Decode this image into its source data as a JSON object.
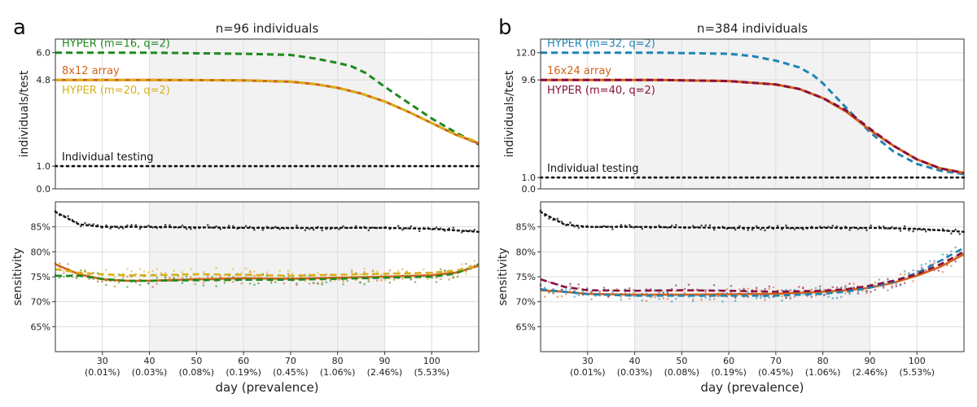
{
  "figure": {
    "xlabel": "day (prevalence)",
    "x_ticks": [
      {
        "day": 30,
        "prev": "(0.01%)"
      },
      {
        "day": 40,
        "prev": "(0.03%)"
      },
      {
        "day": 50,
        "prev": "(0.08%)"
      },
      {
        "day": 60,
        "prev": "(0.19%)"
      },
      {
        "day": 70,
        "prev": "(0.45%)"
      },
      {
        "day": 80,
        "prev": "(1.06%)"
      },
      {
        "day": 90,
        "prev": "(2.46%)"
      },
      {
        "day": 100,
        "prev": "(5.53%)"
      }
    ],
    "xlim": [
      20,
      110
    ],
    "shade_range": [
      40,
      90
    ],
    "sens_ylabel": "sensitivity",
    "sens_ticks": [
      "65%",
      "70%",
      "75%",
      "80%",
      "85%"
    ],
    "sens_tick_values": [
      65,
      70,
      75,
      80,
      85
    ],
    "sens_ylim": [
      60,
      90
    ]
  },
  "chart_data": [
    {
      "panel_letter": "a",
      "title": "n=96 individuals",
      "type": "line",
      "ylabel": "individuals/test",
      "yticks": [
        "0.0",
        "1.0",
        "4.8",
        "6.0"
      ],
      "ytick_values": [
        0.0,
        1.0,
        4.8,
        6.0
      ],
      "ylim": [
        0,
        6.6
      ],
      "series": [
        {
          "name": "HYPER (m=16, q=2)",
          "color": "#1e8a1e",
          "style": "dashed",
          "x": [
            20,
            40,
            60,
            70,
            75,
            80,
            83,
            86,
            90,
            95,
            100,
            105,
            110
          ],
          "y": [
            6.0,
            6.0,
            5.95,
            5.9,
            5.75,
            5.55,
            5.4,
            5.1,
            4.5,
            3.8,
            3.1,
            2.5,
            1.95
          ]
        },
        {
          "name": "8x12 array",
          "color": "#d4621a",
          "style": "solid",
          "x": [
            20,
            40,
            60,
            70,
            75,
            80,
            85,
            90,
            95,
            100,
            105,
            110
          ],
          "y": [
            4.8,
            4.8,
            4.78,
            4.72,
            4.62,
            4.45,
            4.2,
            3.85,
            3.4,
            2.9,
            2.4,
            2.0
          ]
        },
        {
          "name": "HYPER (m=20, q=2)",
          "color": "#d8b01a",
          "style": "dashed",
          "x": [
            20,
            40,
            60,
            70,
            75,
            80,
            85,
            90,
            95,
            100,
            105,
            110
          ],
          "y": [
            4.8,
            4.8,
            4.78,
            4.72,
            4.62,
            4.45,
            4.2,
            3.85,
            3.4,
            2.9,
            2.4,
            2.05
          ]
        },
        {
          "name": "Individual testing",
          "color": "#111111",
          "style": "dotted",
          "x": [
            20,
            110
          ],
          "y": [
            1.0,
            1.0
          ]
        }
      ],
      "sensitivity": [
        {
          "name": "Individual testing",
          "color": "#111111",
          "x": [
            20,
            22,
            25,
            30,
            40,
            60,
            80,
            90,
            100,
            110
          ],
          "y": [
            88,
            87,
            85.5,
            85,
            85,
            84.8,
            84.8,
            84.8,
            84.6,
            84
          ]
        },
        {
          "name": "8x12 array",
          "color": "#d4621a",
          "x": [
            20,
            25,
            30,
            35,
            40,
            50,
            60,
            70,
            80,
            90,
            100,
            105,
            110
          ],
          "y": [
            77.5,
            75.5,
            74.5,
            74.2,
            74.2,
            74.5,
            74.7,
            74.6,
            74.8,
            75,
            75.3,
            75.8,
            77.2
          ]
        },
        {
          "name": "HYPER (m=16, q=2)",
          "color": "#1e8a1e",
          "x": [
            20,
            25,
            30,
            35,
            40,
            50,
            60,
            70,
            80,
            90,
            100,
            105,
            110
          ],
          "y": [
            75.2,
            75.2,
            74.6,
            74.2,
            74.2,
            74.3,
            74.4,
            74.4,
            74.6,
            74.8,
            75.0,
            75.6,
            77.5
          ]
        },
        {
          "name": "HYPER (m=20, q=2)",
          "color": "#d8b01a",
          "x": [
            20,
            25,
            30,
            35,
            40,
            50,
            60,
            70,
            80,
            90,
            100,
            105,
            110
          ],
          "y": [
            76.5,
            75.8,
            75.5,
            75.3,
            75.3,
            75.5,
            75.4,
            75.2,
            75.4,
            75.6,
            75.8,
            76.2,
            77.2
          ]
        }
      ]
    },
    {
      "panel_letter": "b",
      "title": "n=384 individuals",
      "type": "line",
      "ylabel": "individuals/test",
      "yticks": [
        "0.0",
        "1.0",
        "9.6",
        "12.0"
      ],
      "ytick_values": [
        0.0,
        1.0,
        9.6,
        12.0
      ],
      "ylim": [
        0,
        13.2
      ],
      "series": [
        {
          "name": "HYPER (m=32, q=2)",
          "color": "#1e86b4",
          "style": "dashed",
          "x": [
            20,
            45,
            60,
            65,
            70,
            75,
            78,
            80,
            83,
            86,
            90,
            95,
            100,
            105,
            110
          ],
          "y": [
            12.0,
            12.0,
            11.9,
            11.7,
            11.3,
            10.7,
            10.0,
            9.3,
            8.0,
            6.7,
            5.0,
            3.3,
            2.2,
            1.6,
            1.3
          ]
        },
        {
          "name": "16x24 array",
          "color": "#d4621a",
          "style": "solid",
          "x": [
            20,
            45,
            60,
            70,
            75,
            80,
            85,
            90,
            95,
            100,
            105,
            110
          ],
          "y": [
            9.6,
            9.6,
            9.5,
            9.2,
            8.8,
            8.0,
            6.8,
            5.2,
            3.8,
            2.6,
            1.8,
            1.4
          ]
        },
        {
          "name": "HYPER (m=40, q=2)",
          "color": "#8a1040",
          "style": "dashed",
          "x": [
            20,
            45,
            60,
            70,
            75,
            80,
            85,
            90,
            95,
            100,
            105,
            110
          ],
          "y": [
            9.6,
            9.6,
            9.5,
            9.2,
            8.8,
            8.0,
            6.9,
            5.3,
            3.8,
            2.6,
            1.8,
            1.4
          ]
        },
        {
          "name": "Individual testing",
          "color": "#111111",
          "style": "dotted",
          "x": [
            20,
            110
          ],
          "y": [
            1.0,
            1.0
          ]
        }
      ],
      "sensitivity": [
        {
          "name": "Individual testing",
          "color": "#111111",
          "x": [
            20,
            22,
            25,
            30,
            40,
            60,
            80,
            90,
            100,
            110
          ],
          "y": [
            88,
            87,
            85.5,
            85,
            85,
            84.8,
            84.8,
            84.8,
            84.6,
            84
          ]
        },
        {
          "name": "16x24 array",
          "color": "#d4621a",
          "x": [
            20,
            25,
            30,
            40,
            50,
            60,
            70,
            80,
            85,
            90,
            95,
            100,
            105,
            110
          ],
          "y": [
            72.3,
            72.0,
            71.6,
            71.4,
            71.4,
            71.5,
            71.6,
            72.0,
            72.3,
            72.8,
            73.8,
            75.2,
            77.0,
            79.5
          ]
        },
        {
          "name": "HYPER (m=32, q=2)",
          "color": "#1e86b4",
          "x": [
            20,
            25,
            30,
            40,
            50,
            60,
            70,
            80,
            85,
            90,
            95,
            100,
            105,
            110
          ],
          "y": [
            72.5,
            72.0,
            71.5,
            71.2,
            71.2,
            71.2,
            71.2,
            71.6,
            72.0,
            72.8,
            74.0,
            75.8,
            78.2,
            80.8
          ]
        },
        {
          "name": "HYPER (m=40, q=2)",
          "color": "#8a1040",
          "x": [
            20,
            25,
            30,
            40,
            50,
            60,
            70,
            80,
            85,
            90,
            95,
            100,
            105,
            110
          ],
          "y": [
            74.5,
            73.0,
            72.3,
            72.2,
            72.3,
            72.2,
            72.0,
            72.2,
            72.5,
            73.2,
            74.2,
            75.5,
            77.5,
            80.0
          ]
        }
      ]
    }
  ]
}
